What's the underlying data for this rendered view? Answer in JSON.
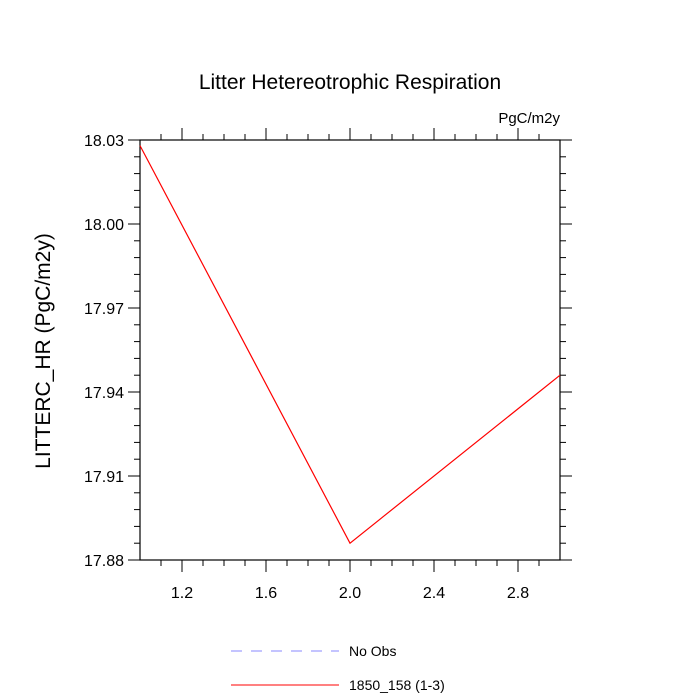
{
  "chart_data": {
    "type": "line",
    "title": "Litter Hetereotrophic Respiration",
    "units_label": "PgC/m2y",
    "xlabel": "",
    "ylabel": "LITTERC_HR  (PgC/m2y)",
    "xlim": [
      1.0,
      3.0
    ],
    "ylim": [
      17.88,
      18.03
    ],
    "x_ticks": [
      1.2,
      1.6,
      2.0,
      2.4,
      2.8
    ],
    "x_tick_labels": [
      "1.2",
      "1.6",
      "2.0",
      "2.4",
      "2.8"
    ],
    "y_ticks": [
      17.88,
      17.91,
      17.94,
      17.97,
      18.0,
      18.03
    ],
    "y_tick_labels": [
      "17.88",
      "17.91",
      "17.94",
      "17.97",
      "18.00",
      "18.03"
    ],
    "grid": false,
    "legend_position": "bottom",
    "series": [
      {
        "name": "No Obs",
        "x": [],
        "y": [],
        "color": "#8a8aff",
        "dash": true
      },
      {
        "name": "1850_158 (1-3)",
        "x": [
          1.0,
          2.0,
          3.0
        ],
        "y": [
          18.028,
          17.886,
          17.946
        ],
        "color": "#ff0000",
        "dash": false
      }
    ]
  }
}
